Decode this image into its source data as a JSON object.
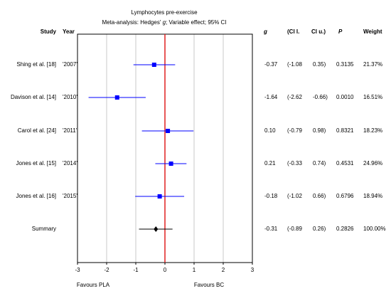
{
  "chart_data": {
    "type": "forest",
    "title": "Lymphocytes pre-exercise",
    "subtitle_prefix": "Meta-analysis: Hedges' ",
    "subtitle_italic": "g",
    "subtitle_suffix": "; Variable effect; 95% CI",
    "columns": {
      "study": "Study",
      "year": "Year",
      "g": "g",
      "cil": "(Cl l.",
      "ciu": "Cl u.)",
      "p": "P",
      "weight": "Weight"
    },
    "xlim": [
      -3,
      3
    ],
    "xticks": [
      "-3",
      "-2",
      "-1",
      "0",
      "1",
      "2",
      "3"
    ],
    "grid": true,
    "reference_line": 0,
    "xlabel_left": "Favours PLA",
    "xlabel_right": "Favours BC",
    "rows": [
      {
        "study": "Shing et al. [18]",
        "year": "'2007'",
        "g": -0.37,
        "cil": -1.08,
        "ciu": 0.35,
        "g_text": "-0.37",
        "cil_text": "(-1.08",
        "ciu_text": "0.35)",
        "p": "0.3135",
        "weight": "21.37%"
      },
      {
        "study": "Davison et al. [14]",
        "year": "'2010'",
        "g": -1.64,
        "cil": -2.62,
        "ciu": -0.66,
        "g_text": "-1.64",
        "cil_text": "(-2.62",
        "ciu_text": "-0.66)",
        "p": "0.0010",
        "weight": "16.51%"
      },
      {
        "study": "Carol et al. [24]",
        "year": "'2011'",
        "g": 0.1,
        "cil": -0.79,
        "ciu": 0.98,
        "g_text": "0.10",
        "cil_text": "(-0.79",
        "ciu_text": "0.98)",
        "p": "0.8321",
        "weight": "18.23%"
      },
      {
        "study": "Jones et al. [15]",
        "year": "'2014'",
        "g": 0.21,
        "cil": -0.33,
        "ciu": 0.74,
        "g_text": "0.21",
        "cil_text": "(-0.33",
        "ciu_text": "0.74)",
        "p": "0.4531",
        "weight": "24.96%"
      },
      {
        "study": "Jones et al. [16]",
        "year": "'2015'",
        "g": -0.18,
        "cil": -1.02,
        "ciu": 0.66,
        "g_text": "-0.18",
        "cil_text": "(-1.02",
        "ciu_text": "0.66)",
        "p": "0.6796",
        "weight": "18.94%"
      }
    ],
    "summary": {
      "study": "Summary",
      "g": -0.31,
      "cil": -0.89,
      "ciu": 0.26,
      "g_text": "-0.31",
      "cil_text": "(-0.89",
      "ciu_text": "0.26)",
      "p": "0.2826",
      "weight": "100.00%"
    },
    "colors": {
      "study_marker": "#0000ff",
      "summary_marker": "#000000",
      "reference_line": "#e02020",
      "grid": "#c8c8c8"
    }
  }
}
